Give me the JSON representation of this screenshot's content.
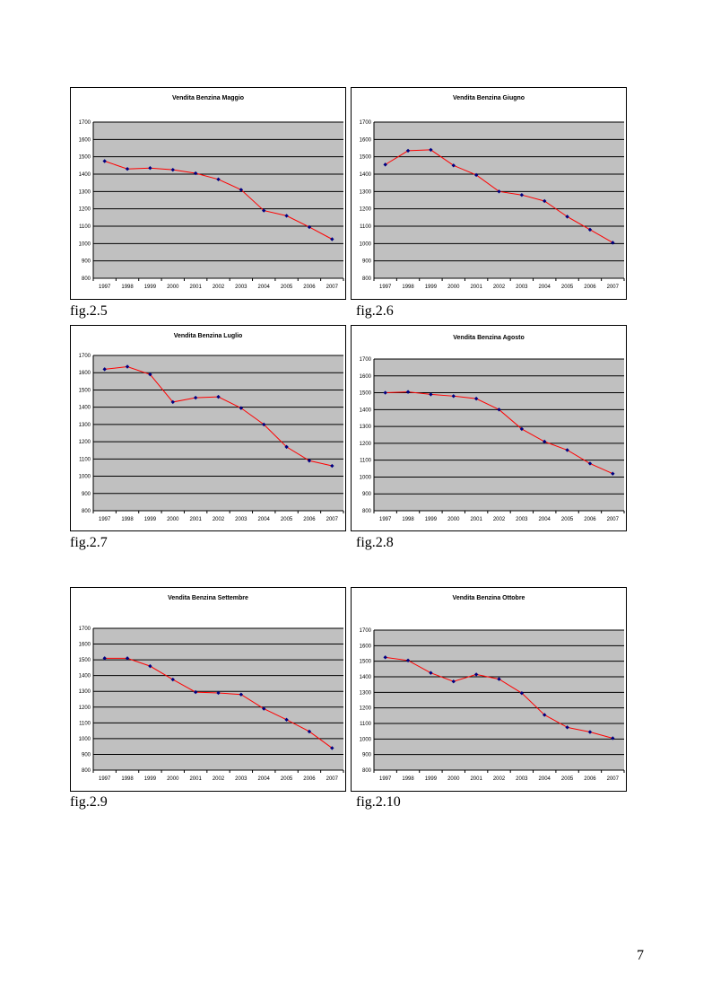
{
  "page_number": "7",
  "chart_data": [
    {
      "type": "line",
      "title": "Vendita Benzina Maggio",
      "figure_label": "fig.2.5",
      "categories": [
        "1997",
        "1998",
        "1999",
        "2000",
        "2001",
        "2002",
        "2003",
        "2004",
        "2005",
        "2006",
        "2007"
      ],
      "values": [
        1475,
        1430,
        1435,
        1425,
        1405,
        1370,
        1310,
        1190,
        1160,
        1095,
        1025
      ],
      "ylim": [
        800,
        1700
      ],
      "yticks": [
        800,
        900,
        1000,
        1100,
        1200,
        1300,
        1400,
        1500,
        1600,
        1700
      ],
      "grid": true,
      "legend": "none",
      "line_color": "#ff0000",
      "marker_color": "#000080",
      "plot_bg": "#c0c0c0"
    },
    {
      "type": "line",
      "title": "Vendita Benzina Giugno",
      "figure_label": "fig.2.6",
      "categories": [
        "1997",
        "1998",
        "1999",
        "2000",
        "2001",
        "2002",
        "2003",
        "2004",
        "2005",
        "2006",
        "2007"
      ],
      "values": [
        1455,
        1535,
        1540,
        1450,
        1395,
        1300,
        1280,
        1245,
        1155,
        1080,
        1005
      ],
      "ylim": [
        800,
        1700
      ],
      "yticks": [
        800,
        900,
        1000,
        1100,
        1200,
        1300,
        1400,
        1500,
        1600,
        1700
      ],
      "grid": true,
      "legend": "none",
      "line_color": "#ff0000",
      "marker_color": "#000080",
      "plot_bg": "#c0c0c0"
    },
    {
      "type": "line",
      "title": "Vendita Benzina Luglio",
      "figure_label": "fig.2.7",
      "categories": [
        "1997",
        "1998",
        "1999",
        "2000",
        "2001",
        "2002",
        "2003",
        "2004",
        "2005",
        "2006",
        "2007"
      ],
      "values": [
        1620,
        1635,
        1590,
        1430,
        1455,
        1460,
        1395,
        1300,
        1170,
        1090,
        1060
      ],
      "ylim": [
        800,
        1700
      ],
      "yticks": [
        800,
        900,
        1000,
        1100,
        1200,
        1300,
        1400,
        1500,
        1600,
        1700
      ],
      "grid": true,
      "legend": "none",
      "line_color": "#ff0000",
      "marker_color": "#000080",
      "plot_bg": "#c0c0c0"
    },
    {
      "type": "line",
      "title": "Vendita Benzina Agosto",
      "figure_label": "fig.2.8",
      "categories": [
        "1997",
        "1998",
        "1999",
        "2000",
        "2001",
        "2002",
        "2003",
        "2004",
        "2005",
        "2006",
        "2007"
      ],
      "values": [
        1500,
        1505,
        1490,
        1480,
        1465,
        1400,
        1285,
        1210,
        1160,
        1080,
        1020
      ],
      "ylim": [
        800,
        1700
      ],
      "yticks": [
        800,
        900,
        1000,
        1100,
        1200,
        1300,
        1400,
        1500,
        1600,
        1700
      ],
      "grid": true,
      "legend": "none",
      "line_color": "#ff0000",
      "marker_color": "#000080",
      "plot_bg": "#c0c0c0"
    },
    {
      "type": "line",
      "title": "Vendita Benzina Settembre",
      "figure_label": "fig.2.9",
      "categories": [
        "1997",
        "1998",
        "1999",
        "2000",
        "2001",
        "2002",
        "2003",
        "2004",
        "2005",
        "2006",
        "2007"
      ],
      "values": [
        1510,
        1510,
        1460,
        1375,
        1295,
        1290,
        1280,
        1190,
        1120,
        1045,
        940
      ],
      "ylim": [
        800,
        1700
      ],
      "yticks": [
        800,
        900,
        1000,
        1100,
        1200,
        1300,
        1400,
        1500,
        1600,
        1700
      ],
      "grid": true,
      "legend": "none",
      "line_color": "#ff0000",
      "marker_color": "#000080",
      "plot_bg": "#c0c0c0"
    },
    {
      "type": "line",
      "title": "Vendita Benzina Ottobre",
      "figure_label": "fig.2.10",
      "categories": [
        "1997",
        "1998",
        "1999",
        "2000",
        "2001",
        "2002",
        "2003",
        "2004",
        "2005",
        "2006",
        "2007"
      ],
      "values": [
        1525,
        1505,
        1425,
        1370,
        1415,
        1385,
        1295,
        1155,
        1075,
        1045,
        1005
      ],
      "ylim": [
        800,
        1700
      ],
      "yticks": [
        800,
        900,
        1000,
        1100,
        1200,
        1300,
        1400,
        1500,
        1600,
        1700
      ],
      "grid": true,
      "legend": "none",
      "line_color": "#ff0000",
      "marker_color": "#000080",
      "plot_bg": "#c0c0c0"
    }
  ]
}
